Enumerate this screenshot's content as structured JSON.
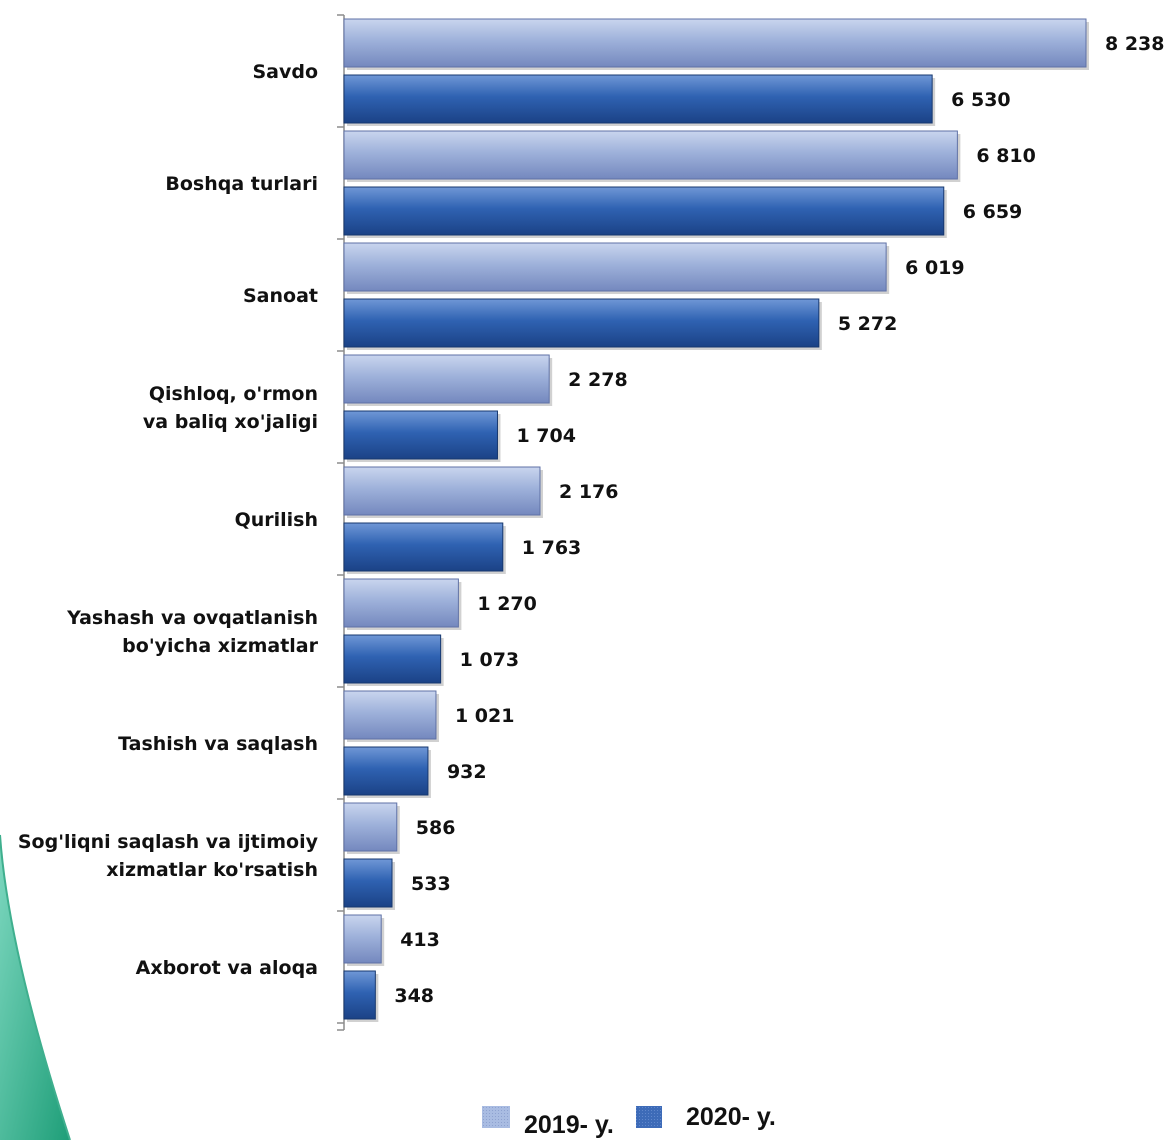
{
  "chart_data": {
    "type": "bar",
    "orientation": "horizontal",
    "categories": [
      [
        "Savdo"
      ],
      [
        "Boshqa turlari"
      ],
      [
        "Sanoat"
      ],
      [
        "Qishloq, o'rmon",
        "va baliq xo'jaligi"
      ],
      [
        "Qurilish"
      ],
      [
        "Yashash va ovqatlanish",
        "bo'yicha xizmatlar"
      ],
      [
        "Tashish va saqlash"
      ],
      [
        "Sog'liqni saqlash va ijtimoiy",
        "xizmatlar ko'rsatish"
      ],
      [
        "Axborot va aloqa"
      ]
    ],
    "series": [
      {
        "name": "2019- y.",
        "color": "#9DB0D8",
        "values": [
          8238,
          6810,
          6019,
          2278,
          2176,
          1270,
          1021,
          586,
          413
        ],
        "labels": [
          "8 238",
          "6 810",
          "6 019",
          "2 278",
          "2 176",
          "1 270",
          "1 021",
          "586",
          "413"
        ]
      },
      {
        "name": "2020- y.",
        "color": "#2E5EAA",
        "values": [
          6530,
          6659,
          5272,
          1704,
          1763,
          1073,
          932,
          533,
          348
        ],
        "labels": [
          "6 530",
          "6 659",
          "5 272",
          "1 704",
          "1 763",
          "1 073",
          "932",
          "533",
          "348"
        ]
      }
    ],
    "xlim": [
      0,
      8238
    ],
    "grid": false,
    "legend_position": "bottom-center"
  }
}
